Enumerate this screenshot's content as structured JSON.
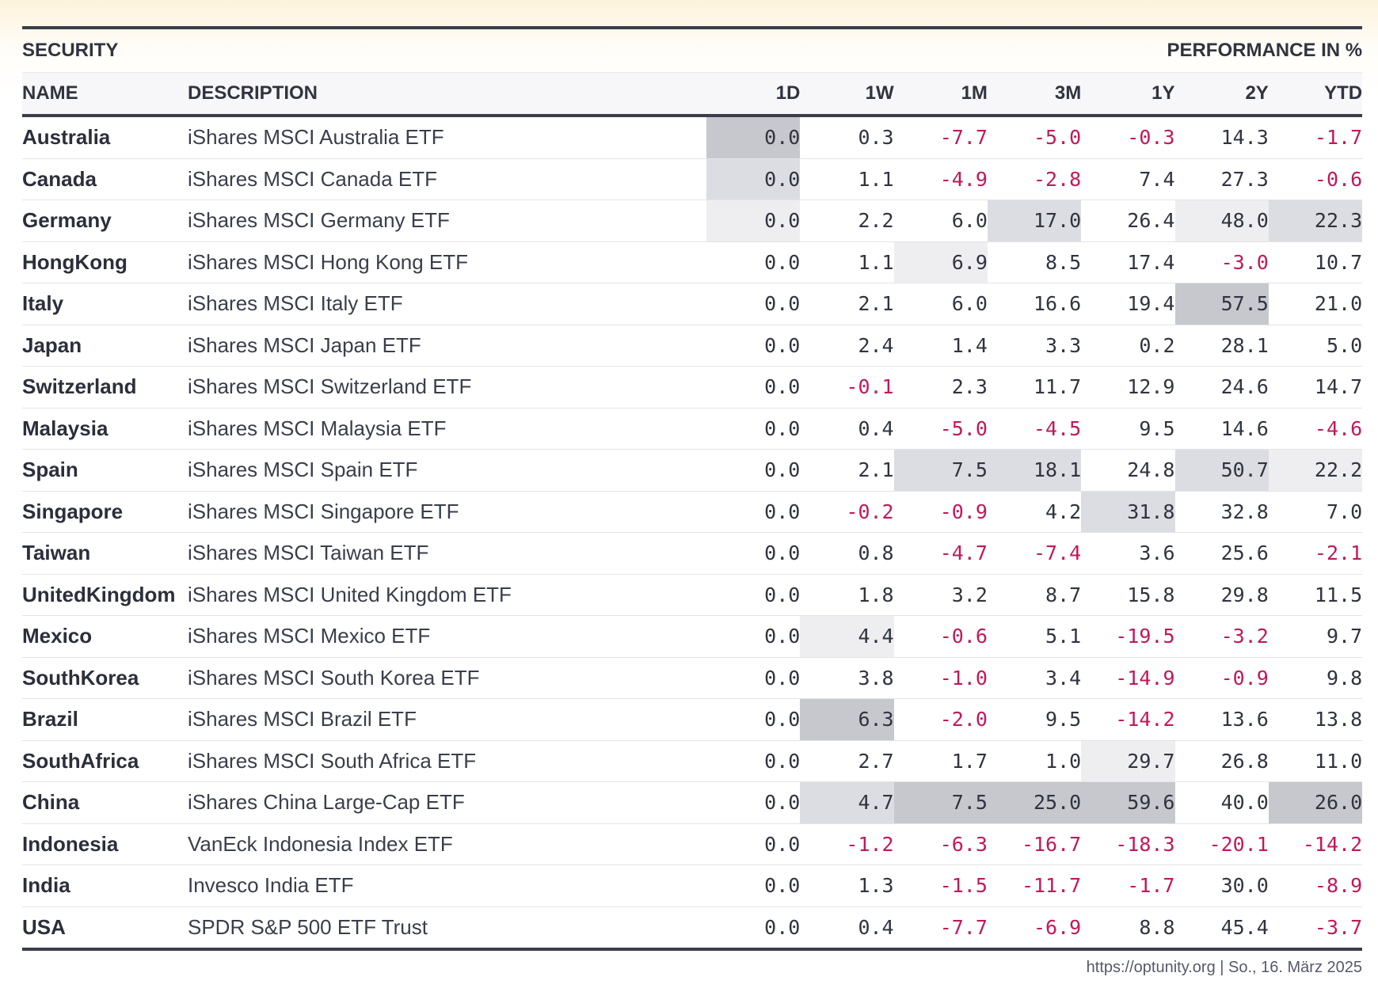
{
  "header": {
    "group_left": "SECURITY",
    "group_right": "PERFORMANCE IN %",
    "col_name": "NAME",
    "col_desc": "DESCRIPTION",
    "periods": [
      "1D",
      "1W",
      "1M",
      "3M",
      "1Y",
      "2Y",
      "YTD"
    ]
  },
  "colors": {
    "negative": "#c2185b",
    "highlight_levels": [
      "#ffffff",
      "#eeeef1",
      "#dcdde2",
      "#c7c8ce"
    ]
  },
  "chart_data": {
    "type": "table",
    "columns": [
      "NAME",
      "DESCRIPTION",
      "1D",
      "1W",
      "1M",
      "3M",
      "1Y",
      "2Y",
      "YTD"
    ],
    "rows": [
      {
        "name": "Australia",
        "desc": "iShares MSCI Australia ETF",
        "values": [
          "0.0",
          "0.3",
          "-7.7",
          "-5.0",
          "-0.3",
          "14.3",
          "-1.7"
        ],
        "shade": [
          3,
          0,
          0,
          0,
          0,
          0,
          0
        ]
      },
      {
        "name": "Canada",
        "desc": "iShares MSCI Canada ETF",
        "values": [
          "0.0",
          "1.1",
          "-4.9",
          "-2.8",
          "7.4",
          "27.3",
          "-0.6"
        ],
        "shade": [
          2,
          0,
          0,
          0,
          0,
          0,
          0
        ]
      },
      {
        "name": "Germany",
        "desc": "iShares MSCI Germany ETF",
        "values": [
          "0.0",
          "2.2",
          "6.0",
          "17.0",
          "26.4",
          "48.0",
          "22.3"
        ],
        "shade": [
          1,
          0,
          0,
          2,
          0,
          1,
          2
        ]
      },
      {
        "name": "HongKong",
        "desc": "iShares MSCI Hong Kong ETF",
        "values": [
          "0.0",
          "1.1",
          "6.9",
          "8.5",
          "17.4",
          "-3.0",
          "10.7"
        ],
        "shade": [
          0,
          0,
          1,
          0,
          0,
          0,
          0
        ]
      },
      {
        "name": "Italy",
        "desc": "iShares MSCI Italy ETF",
        "values": [
          "0.0",
          "2.1",
          "6.0",
          "16.6",
          "19.4",
          "57.5",
          "21.0"
        ],
        "shade": [
          0,
          0,
          0,
          0,
          0,
          3,
          0
        ]
      },
      {
        "name": "Japan",
        "desc": "iShares MSCI Japan ETF",
        "values": [
          "0.0",
          "2.4",
          "1.4",
          "3.3",
          "0.2",
          "28.1",
          "5.0"
        ],
        "shade": [
          0,
          0,
          0,
          0,
          0,
          0,
          0
        ]
      },
      {
        "name": "Switzerland",
        "desc": "iShares MSCI Switzerland ETF",
        "values": [
          "0.0",
          "-0.1",
          "2.3",
          "11.7",
          "12.9",
          "24.6",
          "14.7"
        ],
        "shade": [
          0,
          0,
          0,
          0,
          0,
          0,
          0
        ]
      },
      {
        "name": "Malaysia",
        "desc": "iShares MSCI Malaysia ETF",
        "values": [
          "0.0",
          "0.4",
          "-5.0",
          "-4.5",
          "9.5",
          "14.6",
          "-4.6"
        ],
        "shade": [
          0,
          0,
          0,
          0,
          0,
          0,
          0
        ]
      },
      {
        "name": "Spain",
        "desc": "iShares MSCI Spain ETF",
        "values": [
          "0.0",
          "2.1",
          "7.5",
          "18.1",
          "24.8",
          "50.7",
          "22.2"
        ],
        "shade": [
          0,
          0,
          2,
          2,
          0,
          2,
          1
        ]
      },
      {
        "name": "Singapore",
        "desc": "iShares MSCI Singapore ETF",
        "values": [
          "0.0",
          "-0.2",
          "-0.9",
          "4.2",
          "31.8",
          "32.8",
          "7.0"
        ],
        "shade": [
          0,
          0,
          0,
          0,
          2,
          0,
          0
        ]
      },
      {
        "name": "Taiwan",
        "desc": "iShares MSCI Taiwan ETF",
        "values": [
          "0.0",
          "0.8",
          "-4.7",
          "-7.4",
          "3.6",
          "25.6",
          "-2.1"
        ],
        "shade": [
          0,
          0,
          0,
          0,
          0,
          0,
          0
        ]
      },
      {
        "name": "UnitedKingdom",
        "desc": "iShares MSCI United Kingdom ETF",
        "values": [
          "0.0",
          "1.8",
          "3.2",
          "8.7",
          "15.8",
          "29.8",
          "11.5"
        ],
        "shade": [
          0,
          0,
          0,
          0,
          0,
          0,
          0
        ]
      },
      {
        "name": "Mexico",
        "desc": "iShares MSCI Mexico ETF",
        "values": [
          "0.0",
          "4.4",
          "-0.6",
          "5.1",
          "-19.5",
          "-3.2",
          "9.7"
        ],
        "shade": [
          0,
          1,
          0,
          0,
          0,
          0,
          0
        ]
      },
      {
        "name": "SouthKorea",
        "desc": "iShares MSCI South Korea ETF",
        "values": [
          "0.0",
          "3.8",
          "-1.0",
          "3.4",
          "-14.9",
          "-0.9",
          "9.8"
        ],
        "shade": [
          0,
          0,
          0,
          0,
          0,
          0,
          0
        ]
      },
      {
        "name": "Brazil",
        "desc": "iShares MSCI Brazil ETF",
        "values": [
          "0.0",
          "6.3",
          "-2.0",
          "9.5",
          "-14.2",
          "13.6",
          "13.8"
        ],
        "shade": [
          0,
          3,
          0,
          0,
          0,
          0,
          0
        ]
      },
      {
        "name": "SouthAfrica",
        "desc": "iShares MSCI South Africa ETF",
        "values": [
          "0.0",
          "2.7",
          "1.7",
          "1.0",
          "29.7",
          "26.8",
          "11.0"
        ],
        "shade": [
          0,
          0,
          0,
          0,
          1,
          0,
          0
        ]
      },
      {
        "name": "China",
        "desc": "iShares China Large-Cap ETF",
        "values": [
          "0.0",
          "4.7",
          "7.5",
          "25.0",
          "59.6",
          "40.0",
          "26.0"
        ],
        "shade": [
          0,
          2,
          3,
          3,
          3,
          0,
          3
        ]
      },
      {
        "name": "Indonesia",
        "desc": "VanEck Indonesia Index ETF",
        "values": [
          "0.0",
          "-1.2",
          "-6.3",
          "-16.7",
          "-18.3",
          "-20.1",
          "-14.2"
        ],
        "shade": [
          0,
          0,
          0,
          0,
          0,
          0,
          0
        ]
      },
      {
        "name": "India",
        "desc": "Invesco India ETF",
        "values": [
          "0.0",
          "1.3",
          "-1.5",
          "-11.7",
          "-1.7",
          "30.0",
          "-8.9"
        ],
        "shade": [
          0,
          0,
          0,
          0,
          0,
          0,
          0
        ]
      },
      {
        "name": "USA",
        "desc": "SPDR S&P 500 ETF Trust",
        "values": [
          "0.0",
          "0.4",
          "-7.7",
          "-6.9",
          "8.8",
          "45.4",
          "-3.7"
        ],
        "shade": [
          0,
          0,
          0,
          0,
          0,
          0,
          0
        ]
      }
    ]
  },
  "footer": {
    "text": "https://optunity.org | So., 16. März 2025"
  }
}
